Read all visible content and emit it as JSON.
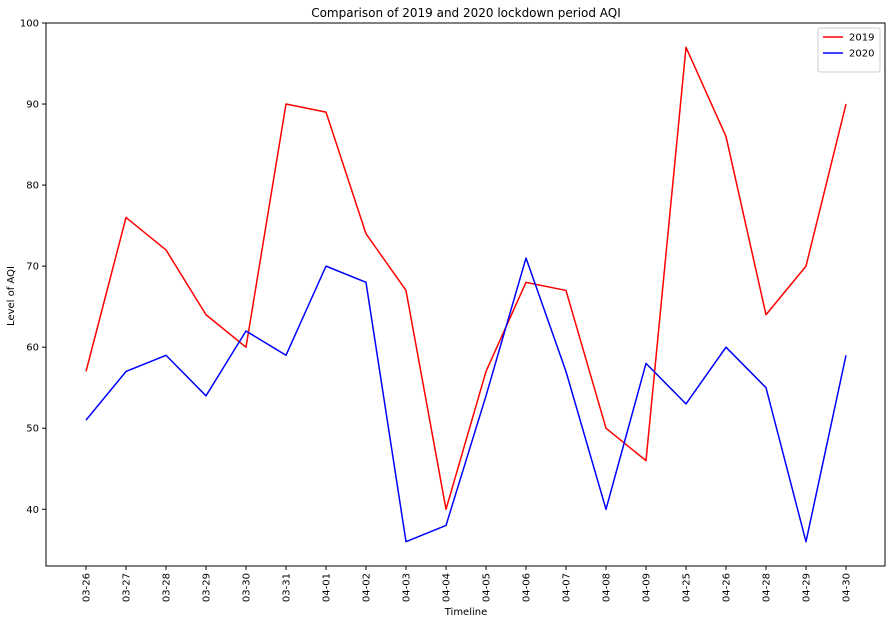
{
  "chart_data": {
    "type": "line",
    "title": "Comparison of 2019 and 2020 lockdown period AQI",
    "xlabel": "Timeline",
    "ylabel": "Level of AQI",
    "categories": [
      "03-26",
      "03-27",
      "03-28",
      "03-29",
      "03-30",
      "03-31",
      "04-01",
      "04-02",
      "04-03",
      "04-04",
      "04-05",
      "04-06",
      "04-07",
      "04-08",
      "04-09",
      "04-25",
      "04-26",
      "04-28",
      "04-29",
      "04-30"
    ],
    "ylim": [
      33,
      100
    ],
    "yticks": [
      40,
      50,
      60,
      70,
      80,
      90,
      100
    ],
    "grid": false,
    "legend_position": "top-right",
    "series": [
      {
        "name": "2019",
        "color": "#ff0000",
        "values": [
          57,
          76,
          72,
          64,
          60,
          90,
          89,
          74,
          67,
          40,
          57,
          68,
          67,
          50,
          46,
          97,
          86,
          64,
          70,
          90
        ]
      },
      {
        "name": "2020",
        "color": "#0000ff",
        "values": [
          51,
          57,
          59,
          54,
          62,
          59,
          70,
          68,
          36,
          38,
          54,
          71,
          57,
          40,
          58,
          53,
          60,
          55,
          36,
          59
        ]
      }
    ]
  }
}
